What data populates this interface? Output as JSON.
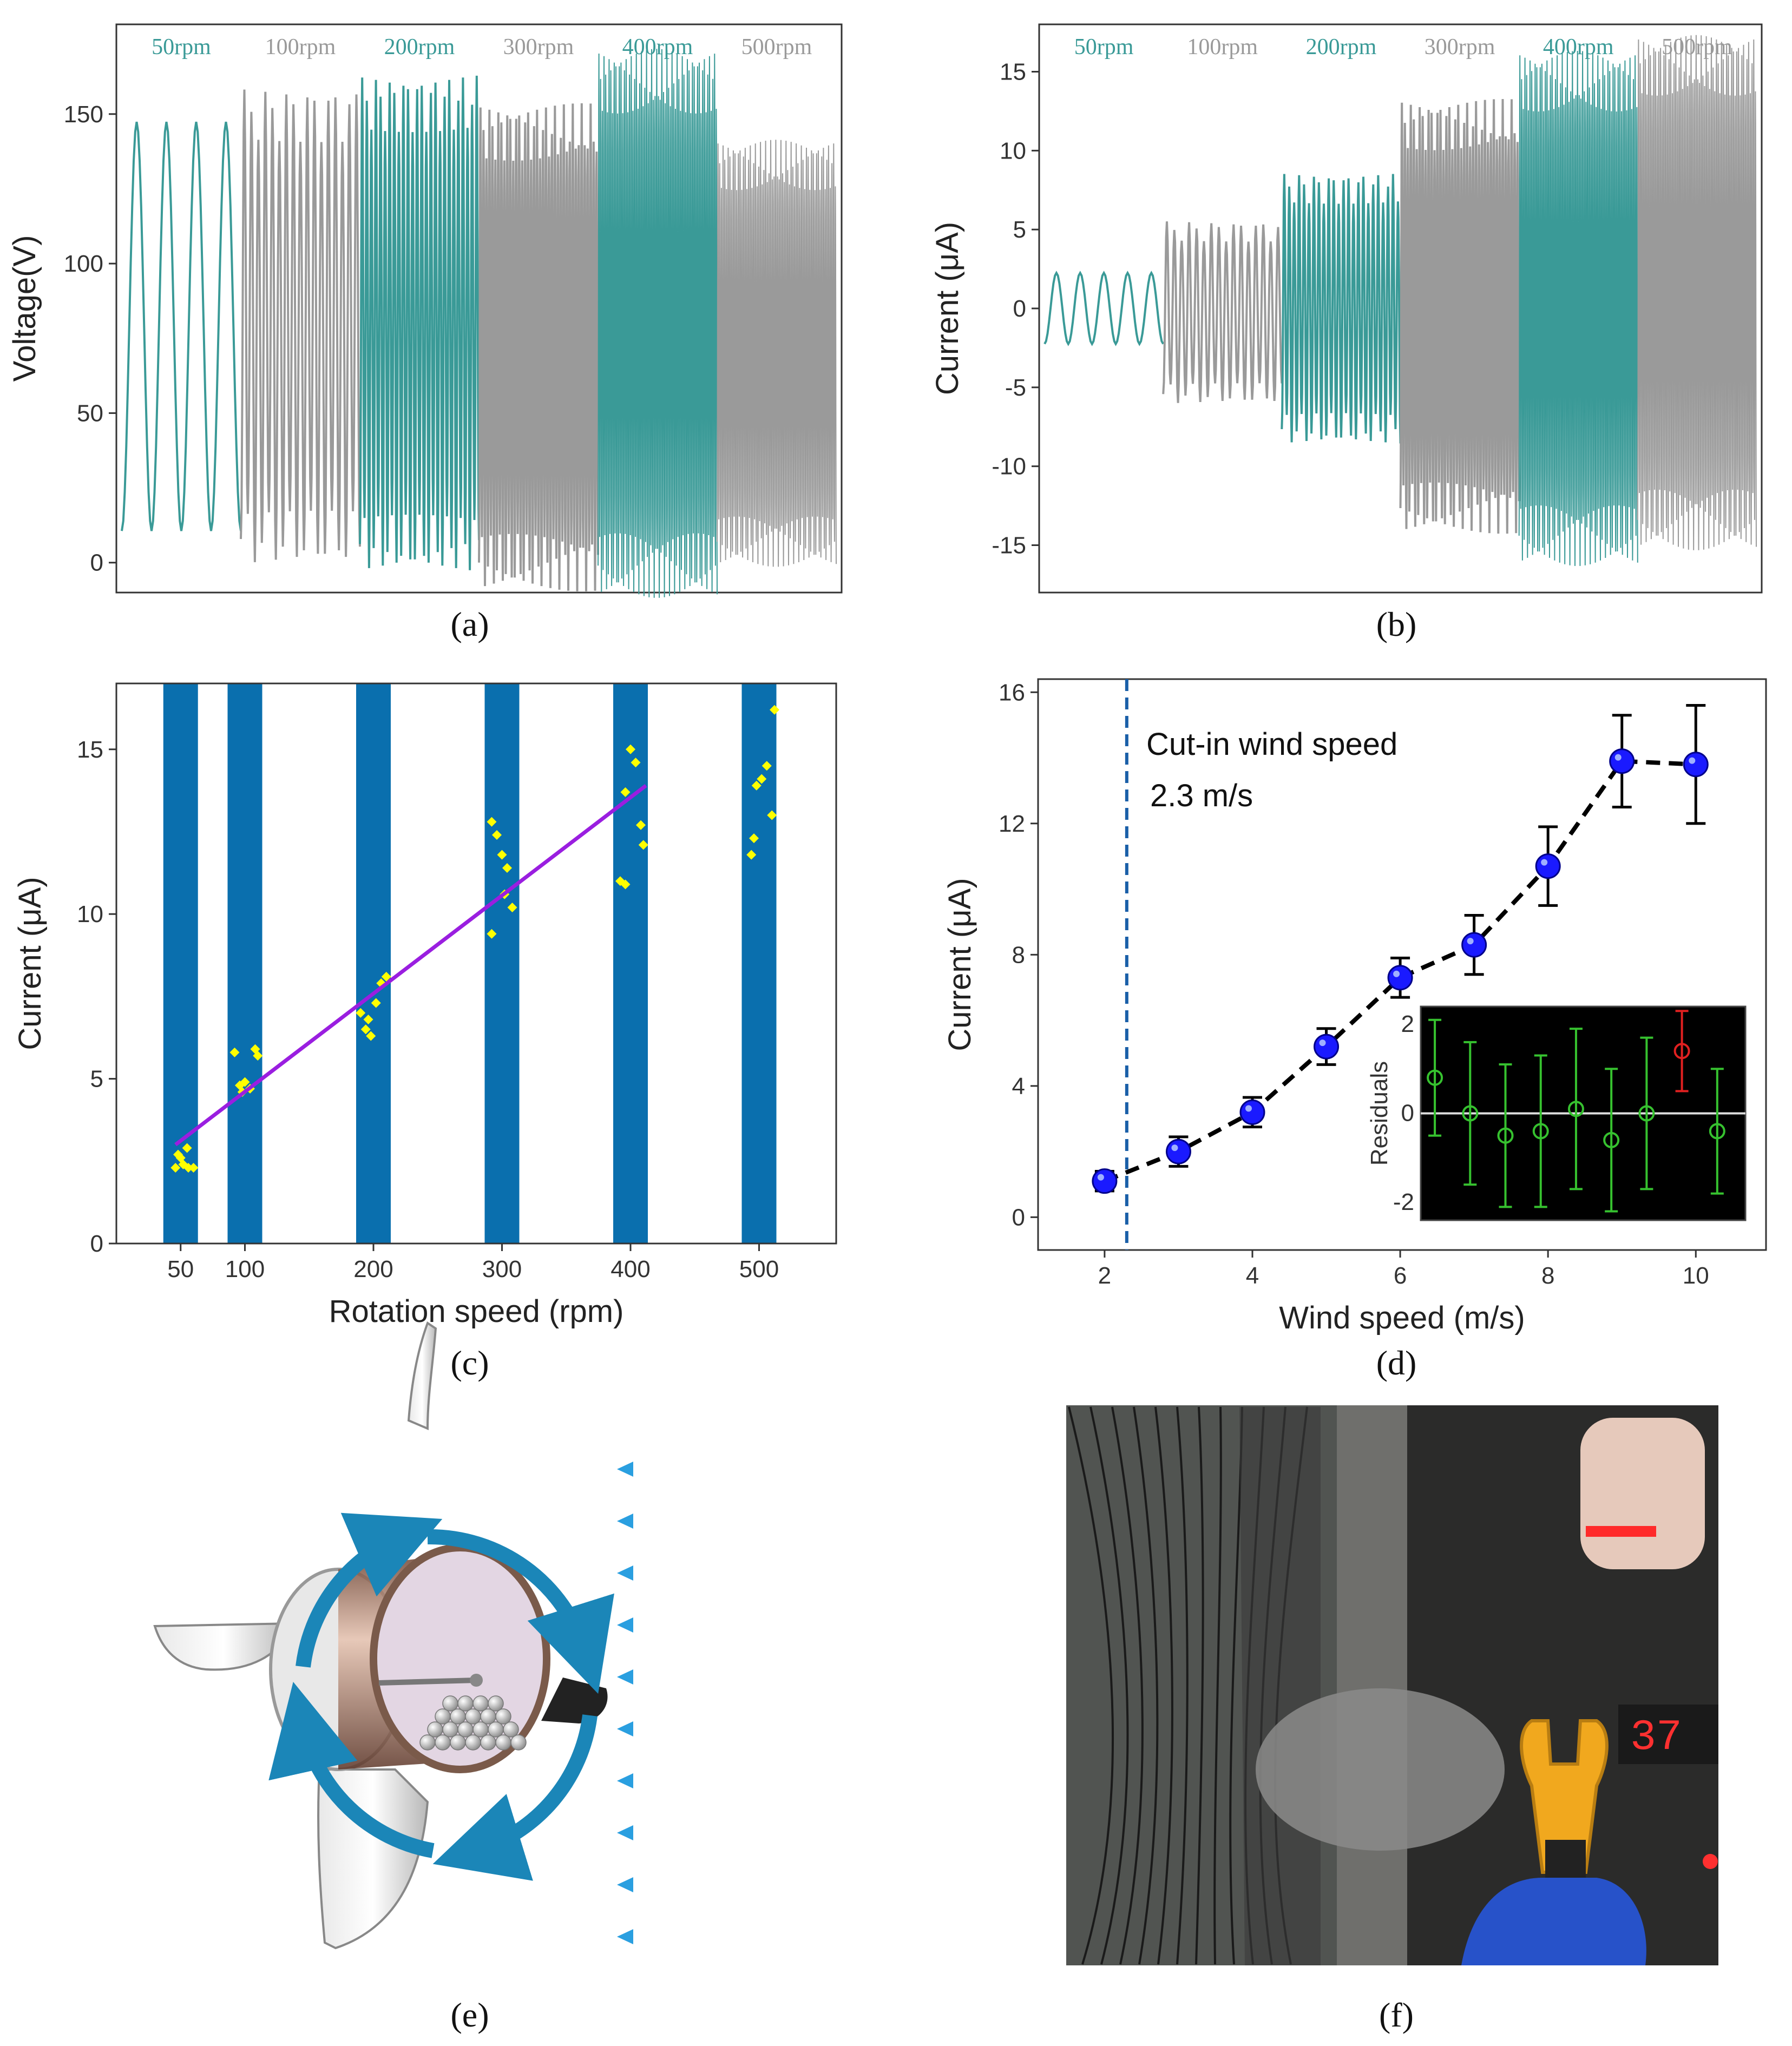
{
  "colors": {
    "teal": "#3a9a97",
    "gray": "#9a9a9a",
    "bar": "#0a6fae",
    "points": "#ffff00",
    "fit": "#9a1ee0",
    "marker": "#1a1aff",
    "dash_line": "#1a5fa8",
    "residual": "#36c12f",
    "residual_out": "#e02020"
  },
  "panel_labels": {
    "a": "(a)",
    "b": "(b)",
    "c": "(c)",
    "d": "(d)",
    "e": "(e)",
    "f": "(f)"
  },
  "photo": {
    "display_value": "37"
  },
  "chart_data": [
    {
      "id": "a",
      "type": "line",
      "ylabel": "Voltage(V)",
      "xlabel": "",
      "ylim": [
        -10,
        180
      ],
      "yticks": [
        0,
        50,
        100,
        150
      ],
      "segments": [
        {
          "name": "50rpm",
          "color": "teal",
          "min": 3,
          "max": 155,
          "cycles": 4
        },
        {
          "name": "100rpm",
          "color": "gray",
          "min": 0,
          "max": 158,
          "cycles": 17
        },
        {
          "name": "200rpm",
          "color": "teal",
          "min": -2,
          "max": 162,
          "cycles": 26
        },
        {
          "name": "300rpm",
          "color": "gray",
          "min": -8,
          "max": 152,
          "cycles": 40
        },
        {
          "name": "400rpm",
          "color": "teal",
          "min": -10,
          "max": 170,
          "cycles": 70
        },
        {
          "name": "500rpm",
          "color": "gray",
          "min": 0,
          "max": 140,
          "cycles": 70
        }
      ]
    },
    {
      "id": "b",
      "type": "line",
      "ylabel": "Current (μA)",
      "xlabel": "",
      "ylim": [
        -18,
        18
      ],
      "yticks": [
        -15,
        -10,
        -5,
        0,
        5,
        10,
        15
      ],
      "segments": [
        {
          "name": "50rpm",
          "color": "teal",
          "min": -2.5,
          "max": 2.5,
          "cycles": 5
        },
        {
          "name": "100rpm",
          "color": "gray",
          "min": -6,
          "max": 5.5,
          "cycles": 16
        },
        {
          "name": "200rpm",
          "color": "teal",
          "min": -8.5,
          "max": 8.5,
          "cycles": 24
        },
        {
          "name": "300rpm",
          "color": "gray",
          "min": -14,
          "max": 13,
          "cycles": 40
        },
        {
          "name": "400rpm",
          "color": "teal",
          "min": -16,
          "max": 16,
          "cycles": 70
        },
        {
          "name": "500rpm",
          "color": "gray",
          "min": -15,
          "max": 17,
          "cycles": 70
        }
      ]
    },
    {
      "id": "c",
      "type": "scatter",
      "xlabel": "Rotation speed (rpm)",
      "ylabel": "Current (μA)",
      "xlim": [
        0,
        560
      ],
      "ylim": [
        0,
        17
      ],
      "xticks": [
        50,
        100,
        200,
        300,
        400,
        500
      ],
      "yticks": [
        0,
        5,
        10,
        15
      ],
      "bars": [
        50,
        100,
        200,
        300,
        400,
        500
      ],
      "points": [
        [
          46,
          2.3
        ],
        [
          52,
          2.4
        ],
        [
          56,
          2.3
        ],
        [
          60,
          2.3
        ],
        [
          50,
          2.6
        ],
        [
          55,
          2.9
        ],
        [
          48,
          2.7
        ],
        [
          92,
          5.8
        ],
        [
          96,
          4.8
        ],
        [
          100,
          4.9
        ],
        [
          104,
          4.7
        ],
        [
          108,
          5.9
        ],
        [
          110,
          5.7
        ],
        [
          98,
          4.6
        ],
        [
          190,
          7.0
        ],
        [
          194,
          6.5
        ],
        [
          198,
          6.3
        ],
        [
          202,
          7.3
        ],
        [
          206,
          7.9
        ],
        [
          210,
          8.1
        ],
        [
          196,
          6.8
        ],
        [
          292,
          12.8
        ],
        [
          296,
          12.4
        ],
        [
          300,
          11.8
        ],
        [
          304,
          11.4
        ],
        [
          308,
          10.2
        ],
        [
          292,
          9.4
        ],
        [
          302,
          10.6
        ],
        [
          392,
          11.0
        ],
        [
          396,
          13.7
        ],
        [
          400,
          15.0
        ],
        [
          404,
          14.6
        ],
        [
          408,
          12.7
        ],
        [
          396,
          10.9
        ],
        [
          410,
          12.1
        ],
        [
          494,
          11.8
        ],
        [
          498,
          13.9
        ],
        [
          502,
          14.1
        ],
        [
          506,
          14.5
        ],
        [
          510,
          13.0
        ],
        [
          512,
          16.2
        ],
        [
          496,
          12.3
        ]
      ],
      "fit": {
        "x": [
          46,
          412
        ],
        "y": [
          3.0,
          13.9
        ]
      }
    },
    {
      "id": "d",
      "type": "line",
      "xlabel": "Wind speed (m/s)",
      "ylabel": "Current (μA)",
      "xlim": [
        1.1,
        10.95
      ],
      "ylim": [
        -1,
        16.4
      ],
      "xticks": [
        2,
        4,
        6,
        8,
        10
      ],
      "yticks": [
        0,
        4,
        8,
        12,
        16
      ],
      "x": [
        2,
        3,
        4,
        5,
        6,
        7,
        8,
        9,
        10
      ],
      "y": [
        1.1,
        2.0,
        3.2,
        5.2,
        7.3,
        8.3,
        10.7,
        13.9,
        13.8
      ],
      "err": [
        0.3,
        0.45,
        0.45,
        0.55,
        0.6,
        0.9,
        1.2,
        1.4,
        1.8
      ],
      "cutin_x": 2.3,
      "annotation": [
        "Cut-in wind speed",
        "2.3 m/s"
      ],
      "inset": {
        "ylabel": "Residuals",
        "ylim": [
          -2.4,
          2.4
        ],
        "yticks": [
          -2,
          0,
          2
        ],
        "x": [
          1,
          2,
          3,
          4,
          5,
          6,
          7,
          8,
          9
        ],
        "y": [
          0.8,
          0.0,
          -0.5,
          -0.4,
          0.1,
          -0.6,
          0.0,
          1.4,
          -0.4
        ],
        "err": [
          1.3,
          1.6,
          1.6,
          1.7,
          1.8,
          1.6,
          1.7,
          0.9,
          1.4
        ],
        "outlier_index": 7
      }
    }
  ]
}
